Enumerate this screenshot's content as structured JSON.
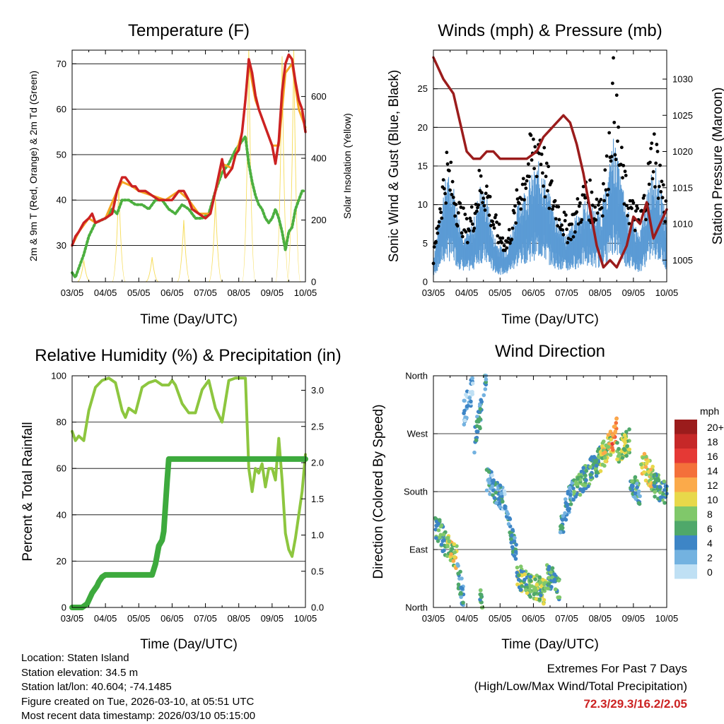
{
  "charts": {
    "temperature": {
      "title": "Temperature (F)",
      "xlabel": "Time (Day/UTC)",
      "ylabel_left": "2m & 9m T (Red, Orange) & 2m Td (Green)",
      "ylabel_right": "Solar Insolation (Yellow)"
    },
    "winds": {
      "title": "Winds (mph) & Pressure (mb)",
      "xlabel": "Time (Day/UTC)",
      "ylabel_left": "Sonic Wind & Gust (Blue, Black)",
      "ylabel_right": "Station Pressure (Maroon)"
    },
    "humidity": {
      "title": "Relative Humidity (%) & Precipitation (in)",
      "xlabel": "Time (Day/UTC)",
      "ylabel_left": "Percent & Total Rainfall"
    },
    "direction": {
      "title": "Wind Direction",
      "xlabel": "Time (Day/UTC)",
      "ylabel_left": "Direction (Colored By Speed)",
      "legend_unit": "mph"
    }
  },
  "footer": {
    "location": "Location: Staten Island",
    "elevation": "Station elevation: 34.5 m",
    "latlon": "Station lat/lon: 40.604; -74.1485",
    "created": "Figure created on Tue, 2026-03-10, at 05:51 UTC",
    "recent": "Most recent data timestamp: 2026/03/10 05:15:00",
    "extremes_title": "Extremes For Past 7 Days",
    "extremes_subtitle": "(High/Low/Max Wind/Total Precipitation)",
    "extremes_values": "72.3/29.3/16.2/2.05",
    "extremes_color": "#cc2222"
  },
  "chart_data": [
    {
      "id": "temperature",
      "type": "line",
      "title": "Temperature (F)",
      "xlabel": "Time (Day/UTC)",
      "ylabel": "2m & 9m T (Red, Orange) & 2m Td (Green)",
      "y2label": "Solar Insolation (Yellow)",
      "x_ticks": [
        "03/05",
        "04/05",
        "05/05",
        "06/05",
        "07/05",
        "08/05",
        "09/05",
        "10/05"
      ],
      "xlim": [
        0,
        7
      ],
      "ylim": [
        22,
        73
      ],
      "y_ticks": [
        30,
        40,
        50,
        60,
        70
      ],
      "y2lim": [
        0,
        750
      ],
      "y2_ticks": [
        0,
        200,
        400,
        600
      ],
      "series": [
        {
          "name": "2m T",
          "color": "#cc2222",
          "x": [
            0,
            0.1,
            0.2,
            0.35,
            0.5,
            0.6,
            0.7,
            1.0,
            1.2,
            1.35,
            1.5,
            1.6,
            1.7,
            1.8,
            1.9,
            2.0,
            2.2,
            2.4,
            2.6,
            2.8,
            3.0,
            3.2,
            3.35,
            3.5,
            3.6,
            3.8,
            4.0,
            4.15,
            4.3,
            4.5,
            4.6,
            4.8,
            4.9,
            5.0,
            5.1,
            5.2,
            5.3,
            5.4,
            5.5,
            5.6,
            5.8,
            6.0,
            6.1,
            6.2,
            6.3,
            6.4,
            6.5,
            6.6,
            6.7,
            6.8,
            6.9,
            7.0
          ],
          "values": [
            30,
            32,
            33,
            35,
            36,
            37,
            35,
            36,
            37,
            42,
            45,
            45,
            44,
            43,
            43,
            42,
            42,
            41,
            40,
            40,
            40,
            42,
            42,
            40,
            38,
            37,
            36,
            37,
            42,
            49,
            45,
            47,
            50,
            51,
            55,
            62,
            71,
            68,
            63,
            60,
            56,
            52,
            48,
            53,
            64,
            70,
            72,
            71,
            66,
            62,
            60,
            55
          ]
        },
        {
          "name": "9m T",
          "color": "#f5a623",
          "x": [
            0,
            0.2,
            0.5,
            0.7,
            1.0,
            1.35,
            1.5,
            1.8,
            2.0,
            2.4,
            2.8,
            3.2,
            3.5,
            3.8,
            4.15,
            4.5,
            4.8,
            5.1,
            5.3,
            5.5,
            5.8,
            6.0,
            6.2,
            6.4,
            6.6,
            6.8,
            7.0
          ],
          "values": [
            30,
            33,
            36,
            35,
            36,
            42,
            44,
            43,
            42,
            41,
            40,
            42,
            40,
            37,
            37,
            48,
            47,
            55,
            70,
            62,
            56,
            52,
            52,
            68,
            70,
            60,
            56
          ]
        },
        {
          "name": "2m Td",
          "color": "#4caf3f",
          "x": [
            0,
            0.1,
            0.2,
            0.35,
            0.5,
            0.7,
            1.0,
            1.2,
            1.35,
            1.5,
            1.7,
            1.9,
            2.1,
            2.3,
            2.5,
            2.7,
            2.9,
            3.1,
            3.3,
            3.5,
            3.7,
            3.9,
            4.1,
            4.3,
            4.5,
            4.7,
            4.9,
            5.1,
            5.2,
            5.3,
            5.4,
            5.5,
            5.6,
            5.7,
            5.8,
            5.9,
            6.0,
            6.1,
            6.2,
            6.3,
            6.4,
            6.5,
            6.6,
            6.7,
            6.8,
            6.9,
            7.0
          ],
          "values": [
            24,
            23,
            25,
            28,
            32,
            35,
            36,
            38,
            37,
            40,
            40,
            39,
            39,
            38,
            40,
            40,
            38,
            37,
            39,
            38,
            36,
            36,
            37,
            42,
            46,
            48,
            51,
            53,
            54,
            48,
            44,
            41,
            39,
            38,
            36,
            35,
            36,
            38,
            36,
            33,
            29,
            33,
            34,
            38,
            40,
            42,
            42
          ]
        },
        {
          "name": "Solar Insolation",
          "color": "#f6dc5a",
          "axis": "right",
          "peaks_x": [
            0.35,
            1.4,
            2.4,
            3.35,
            4.3,
            5.3,
            6.3,
            6.65
          ],
          "peaks": [
            70,
            320,
            80,
            200,
            270,
            750,
            730,
            750
          ]
        }
      ]
    },
    {
      "id": "winds",
      "type": "line",
      "title": "Winds (mph) & Pressure (mb)",
      "xlabel": "Time (Day/UTC)",
      "ylabel": "Sonic Wind & Gust (Blue, Black)",
      "y2label": "Station Pressure (Maroon)",
      "x_ticks": [
        "03/05",
        "04/05",
        "05/05",
        "06/05",
        "07/05",
        "08/05",
        "09/05",
        "10/05"
      ],
      "xlim": [
        0,
        7
      ],
      "ylim": [
        0,
        30
      ],
      "y_ticks": [
        0,
        5,
        10,
        15,
        20,
        25
      ],
      "y2lim": [
        1002,
        1034
      ],
      "y2_ticks": [
        1005,
        1010,
        1015,
        1020,
        1025,
        1030
      ],
      "series": [
        {
          "name": "Sonic Wind",
          "color": "#5b9bd5",
          "x": [
            0,
            0.2,
            0.4,
            0.6,
            0.8,
            1.0,
            1.2,
            1.4,
            1.6,
            1.8,
            2.0,
            2.2,
            2.4,
            2.6,
            2.8,
            3.0,
            3.2,
            3.4,
            3.6,
            3.8,
            4.0,
            4.2,
            4.4,
            4.6,
            4.8,
            5.0,
            5.2,
            5.4,
            5.6,
            5.8,
            6.0,
            6.2,
            6.4,
            6.6,
            6.8,
            7.0
          ],
          "values": [
            2,
            6,
            9,
            8,
            5,
            4,
            5,
            8,
            7,
            4,
            3,
            3,
            5,
            7,
            8,
            9,
            10,
            8,
            6,
            5,
            4,
            5,
            6,
            7,
            6,
            6,
            8,
            12,
            9,
            6,
            5,
            4,
            7,
            10,
            8,
            5
          ]
        },
        {
          "name": "Gust",
          "color": "#000000",
          "x": [
            0,
            0.2,
            0.4,
            0.6,
            0.8,
            1.0,
            1.2,
            1.4,
            1.6,
            1.8,
            2.0,
            2.2,
            2.4,
            2.6,
            2.8,
            3.0,
            3.2,
            3.4,
            3.6,
            3.8,
            4.0,
            4.2,
            4.4,
            4.6,
            4.8,
            5.0,
            5.2,
            5.4,
            5.6,
            5.8,
            6.0,
            6.2,
            6.4,
            6.6,
            6.8,
            7.0
          ],
          "values": [
            3,
            10,
            15,
            12,
            9,
            7,
            9,
            13,
            12,
            8,
            6,
            5,
            8,
            12,
            15,
            17,
            19,
            13,
            11,
            9,
            7,
            8,
            10,
            12,
            10,
            11,
            14,
            25,
            16,
            11,
            9,
            8,
            12,
            18,
            14,
            9
          ]
        },
        {
          "name": "Station Pressure",
          "color": "#9b1c1c",
          "axis": "right",
          "x": [
            0,
            0.3,
            0.6,
            0.8,
            1.0,
            1.2,
            1.4,
            1.6,
            1.8,
            2.0,
            2.2,
            2.5,
            2.8,
            3.1,
            3.3,
            3.5,
            3.7,
            3.9,
            4.1,
            4.3,
            4.5,
            4.7,
            4.9,
            5.1,
            5.3,
            5.5,
            5.6,
            5.8,
            6.0,
            6.2,
            6.4,
            6.6,
            6.8,
            7.0
          ],
          "values": [
            1033,
            1030,
            1028,
            1024,
            1020,
            1019,
            1019,
            1020,
            1020,
            1019,
            1019,
            1019,
            1019,
            1020,
            1022,
            1023,
            1024,
            1025,
            1024,
            1021,
            1017,
            1012,
            1007,
            1004,
            1005,
            1004,
            1005,
            1007,
            1011,
            1010,
            1013,
            1008,
            1010,
            1012
          ]
        }
      ]
    },
    {
      "id": "humidity",
      "type": "line",
      "title": "Relative Humidity (%) & Precipitation (in)",
      "xlabel": "Time (Day/UTC)",
      "ylabel": "Percent & Total Rainfall",
      "x_ticks": [
        "03/05",
        "04/05",
        "05/05",
        "06/05",
        "07/05",
        "08/05",
        "09/05",
        "10/05"
      ],
      "xlim": [
        0,
        7
      ],
      "ylim": [
        0,
        100
      ],
      "y_ticks": [
        0,
        20,
        40,
        60,
        80,
        100
      ],
      "y2lim": [
        0,
        3.2
      ],
      "y2_ticks": [
        0.0,
        0.5,
        1.0,
        1.5,
        2.0,
        2.5,
        3.0
      ],
      "series": [
        {
          "name": "Relative Humidity",
          "color": "#8dc63f",
          "x": [
            0,
            0.1,
            0.2,
            0.35,
            0.5,
            0.7,
            0.9,
            1.1,
            1.3,
            1.5,
            1.6,
            1.7,
            1.9,
            2.1,
            2.3,
            2.5,
            2.7,
            2.9,
            3.0,
            3.1,
            3.3,
            3.5,
            3.7,
            3.9,
            4.1,
            4.3,
            4.5,
            4.7,
            4.9,
            5.1,
            5.2,
            5.3,
            5.4,
            5.5,
            5.6,
            5.7,
            5.8,
            5.9,
            6.0,
            6.1,
            6.2,
            6.3,
            6.4,
            6.5,
            6.6,
            6.7,
            6.8,
            6.9,
            7.0
          ],
          "values": [
            76,
            72,
            74,
            72,
            85,
            95,
            98,
            99,
            97,
            85,
            82,
            86,
            84,
            95,
            97,
            98,
            96,
            96,
            98,
            96,
            88,
            84,
            84,
            94,
            98,
            86,
            80,
            98,
            99,
            99,
            99,
            60,
            50,
            60,
            58,
            62,
            52,
            60,
            60,
            55,
            73,
            55,
            32,
            25,
            22,
            30,
            40,
            50,
            66
          ]
        },
        {
          "name": "Total Rainfall",
          "color": "#3daa3d",
          "axis": "right",
          "x": [
            0,
            0.3,
            0.45,
            0.6,
            0.75,
            0.8,
            0.9,
            1.0,
            1.5,
            2.0,
            2.2,
            2.4,
            2.5,
            2.6,
            2.7,
            2.75,
            2.8,
            2.85,
            2.9,
            3.0,
            3.2,
            4.0,
            5.0,
            6.0,
            7.0
          ],
          "values": [
            0.0,
            0.0,
            0.05,
            0.2,
            0.3,
            0.35,
            0.42,
            0.45,
            0.45,
            0.45,
            0.45,
            0.45,
            0.6,
            0.85,
            0.93,
            1.05,
            1.4,
            1.75,
            2.05,
            2.05,
            2.05,
            2.05,
            2.05,
            2.05,
            2.05
          ]
        }
      ]
    },
    {
      "id": "direction",
      "type": "scatter",
      "title": "Wind Direction",
      "xlabel": "Time (Day/UTC)",
      "ylabel": "Direction (Colored By Speed)",
      "x_ticks": [
        "03/05",
        "04/05",
        "05/05",
        "06/05",
        "07/05",
        "08/05",
        "09/05",
        "10/05"
      ],
      "xlim": [
        0,
        7
      ],
      "ylim": [
        0,
        360
      ],
      "y_ticks": [
        "North",
        "East",
        "South",
        "West",
        "North"
      ],
      "y_tick_values": [
        0,
        90,
        180,
        270,
        360
      ],
      "legend": {
        "title": "mph",
        "labels": [
          "20+",
          "18",
          "16",
          "14",
          "12",
          "10",
          "8",
          "6",
          "4",
          "2",
          "0"
        ],
        "colors": [
          "#9b1c1c",
          "#c62828",
          "#e53935",
          "#f4703a",
          "#fbaa4a",
          "#e8d84a",
          "#80c86a",
          "#4fa86a",
          "#3d85c6",
          "#73b2e0",
          "#bfe0f4"
        ]
      },
      "clusters": [
        {
          "x": [
            0.05,
            0.4
          ],
          "dir": [
            130,
            95
          ],
          "speed": 6
        },
        {
          "x": [
            0.4,
            0.7
          ],
          "dir": [
            95,
            80
          ],
          "speed": 9
        },
        {
          "x": [
            0.7,
            0.9
          ],
          "dir": [
            60,
            15
          ],
          "speed": 4
        },
        {
          "x": [
            0.9,
            1.2
          ],
          "dir": [
            300,
            345
          ],
          "speed": 2
        },
        {
          "x": [
            1.2,
            1.45
          ],
          "dir": [
            250,
            310
          ],
          "speed": 4
        },
        {
          "x": [
            1.4,
            1.5
          ],
          "dir": [
            20,
            5
          ],
          "speed": 6
        },
        {
          "x": [
            1.5,
            1.6
          ],
          "dir": [
            340,
            360
          ],
          "speed": 4
        },
        {
          "x": [
            1.6,
            2.2
          ],
          "dir": [
            200,
            160
          ],
          "speed": 3
        },
        {
          "x": [
            2.2,
            2.5
          ],
          "dir": [
            140,
            80
          ],
          "speed": 4
        },
        {
          "x": [
            2.5,
            3.4
          ],
          "dir": [
            50,
            20
          ],
          "speed": 7
        },
        {
          "x": [
            3.4,
            3.8
          ],
          "dir": [
            50,
            30
          ],
          "speed": 6
        },
        {
          "x": [
            3.8,
            4.2
          ],
          "dir": [
            120,
            190
          ],
          "speed": 4
        },
        {
          "x": [
            4.2,
            5.0
          ],
          "dir": [
            180,
            230
          ],
          "speed": 6
        },
        {
          "x": [
            5.0,
            5.4
          ],
          "dir": [
            230,
            260
          ],
          "speed": 9
        },
        {
          "x": [
            5.35,
            5.5
          ],
          "dir": [
            260,
            275
          ],
          "speed": 14
        },
        {
          "x": [
            5.5,
            5.9
          ],
          "dir": [
            240,
            260
          ],
          "speed": 8
        },
        {
          "x": [
            5.9,
            6.2
          ],
          "dir": [
            200,
            170
          ],
          "speed": 5
        },
        {
          "x": [
            6.2,
            6.6
          ],
          "dir": [
            230,
            200
          ],
          "speed": 10
        },
        {
          "x": [
            6.6,
            7.0
          ],
          "dir": [
            190,
            180
          ],
          "speed": 6
        }
      ]
    }
  ]
}
